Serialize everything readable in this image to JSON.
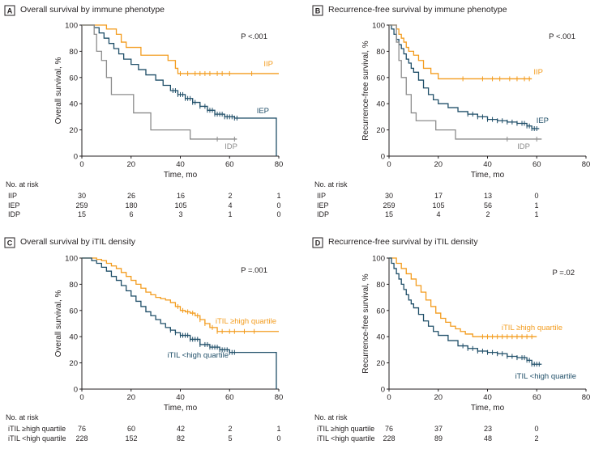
{
  "colors": {
    "orange": "#f39c1e",
    "navy": "#1f4e68",
    "gray": "#8c8c8c",
    "axis": "#231f20",
    "badge_border": "#231f20"
  },
  "chart_data": [
    {
      "panel": "A",
      "type": "line",
      "step": true,
      "title": "Overall survival by immune phenotype",
      "xlabel": "Time, mo",
      "ylabel": "Overall survival, %",
      "xlim": [
        0,
        80
      ],
      "ylim": [
        0,
        100
      ],
      "xticks": [
        0,
        20,
        40,
        60,
        80
      ],
      "yticks": [
        0,
        20,
        40,
        60,
        80,
        100
      ],
      "pvalue": "P <.001",
      "series": [
        {
          "name": "IIP",
          "color": "orange",
          "x": [
            0,
            10,
            14,
            16,
            18,
            24,
            35,
            38,
            39,
            80
          ],
          "y": [
            100,
            97,
            93,
            87,
            83,
            77,
            73,
            67,
            63,
            63
          ],
          "censor_x": [
            40,
            43,
            46,
            48,
            50,
            52,
            55,
            57,
            60,
            69
          ]
        },
        {
          "name": "IEP",
          "color": "navy",
          "x": [
            0,
            5,
            7,
            9,
            11,
            13,
            15,
            17,
            20,
            23,
            26,
            30,
            33,
            36,
            39,
            42,
            45,
            48,
            51,
            54,
            58,
            62,
            79,
            79
          ],
          "y": [
            100,
            98,
            94,
            90,
            86,
            82,
            78,
            74,
            70,
            66,
            62,
            58,
            54,
            50,
            47,
            44,
            41,
            38,
            35,
            32,
            30,
            29,
            29,
            0
          ],
          "censor_x": [
            37,
            38,
            39,
            40,
            41,
            42,
            43,
            44,
            45,
            46,
            48,
            50,
            51,
            52,
            53,
            54,
            55,
            56,
            57,
            58,
            59,
            60,
            61,
            62,
            63
          ]
        },
        {
          "name": "IDP",
          "color": "gray",
          "x": [
            0,
            5,
            6,
            8,
            10,
            12,
            21,
            28,
            44,
            63
          ],
          "y": [
            100,
            93,
            80,
            73,
            60,
            47,
            33,
            20,
            13,
            13
          ],
          "censor_x": [
            55,
            62
          ]
        }
      ],
      "risk_table": {
        "label": "No. at risk",
        "rows": [
          {
            "name": "IIP",
            "values": [
              "30",
              "26",
              "16",
              "2",
              "1"
            ]
          },
          {
            "name": "IEP",
            "values": [
              "259",
              "180",
              "105",
              "4",
              "0"
            ]
          },
          {
            "name": "IDP",
            "values": [
              "15",
              "6",
              "3",
              "1",
              "0"
            ]
          }
        ]
      }
    },
    {
      "panel": "B",
      "type": "line",
      "step": true,
      "title": "Recurrence-free survival by immune phenotype",
      "xlabel": "Time, mo",
      "ylabel": "Recurrence-free survival, %",
      "xlim": [
        0,
        80
      ],
      "ylim": [
        0,
        100
      ],
      "xticks": [
        0,
        20,
        40,
        60,
        80
      ],
      "yticks": [
        0,
        20,
        40,
        60,
        80,
        100
      ],
      "pvalue": "P <.001",
      "series": [
        {
          "name": "IIP",
          "color": "orange",
          "x": [
            0,
            3,
            4,
            5,
            6,
            7,
            8,
            10,
            12,
            14,
            17,
            20,
            58
          ],
          "y": [
            100,
            97,
            93,
            90,
            87,
            83,
            80,
            77,
            73,
            67,
            63,
            59,
            59
          ],
          "censor_x": [
            30,
            38,
            42,
            45,
            49,
            52,
            55,
            57
          ]
        },
        {
          "name": "IEP",
          "color": "navy",
          "x": [
            0,
            1,
            2,
            3,
            4,
            5,
            6,
            7,
            8,
            9,
            10,
            12,
            14,
            16,
            18,
            20,
            24,
            28,
            32,
            36,
            40,
            44,
            48,
            52,
            56,
            58,
            61
          ],
          "y": [
            100,
            97,
            93,
            89,
            85,
            82,
            78,
            74,
            71,
            67,
            64,
            58,
            52,
            47,
            43,
            40,
            37,
            34,
            32,
            30,
            28,
            27,
            26,
            25,
            23,
            21,
            21
          ],
          "censor_x": [
            32,
            34,
            36,
            38,
            40,
            42,
            44,
            46,
            48,
            50,
            52,
            54,
            55,
            56,
            57,
            58,
            59,
            60
          ]
        },
        {
          "name": "IDP",
          "color": "gray",
          "x": [
            0,
            3,
            4,
            5,
            7,
            9,
            11,
            19,
            27,
            62
          ],
          "y": [
            100,
            87,
            73,
            60,
            47,
            33,
            27,
            20,
            13,
            13
          ],
          "censor_x": [
            48,
            60
          ]
        }
      ],
      "risk_table": {
        "label": "No. at risk",
        "rows": [
          {
            "name": "IIP",
            "values": [
              "30",
              "17",
              "13",
              "0"
            ]
          },
          {
            "name": "IEP",
            "values": [
              "259",
              "105",
              "56",
              "1"
            ]
          },
          {
            "name": "IDP",
            "values": [
              "15",
              "4",
              "2",
              "1"
            ]
          }
        ]
      }
    },
    {
      "panel": "C",
      "type": "line",
      "step": true,
      "title": "Overall survival by iTIL density",
      "xlabel": "Time, mo",
      "ylabel": "Overall survival, %",
      "xlim": [
        0,
        80
      ],
      "ylim": [
        0,
        100
      ],
      "xticks": [
        0,
        20,
        40,
        60,
        80
      ],
      "yticks": [
        0,
        20,
        40,
        60,
        80,
        100
      ],
      "pvalue": "P =.001",
      "series": [
        {
          "name": "iTIL ≥high quartile",
          "color": "orange",
          "x": [
            0,
            6,
            8,
            10,
            12,
            14,
            16,
            18,
            20,
            22,
            24,
            26,
            28,
            30,
            32,
            34,
            36,
            38,
            40,
            42,
            44,
            46,
            48,
            50,
            52,
            55,
            80
          ],
          "y": [
            100,
            99,
            98,
            96,
            94,
            92,
            89,
            86,
            83,
            80,
            77,
            74,
            72,
            70,
            69,
            68,
            66,
            63,
            60,
            59,
            58,
            56,
            53,
            50,
            47,
            44,
            44
          ],
          "censor_x": [
            39,
            41,
            43,
            45,
            47,
            48,
            50,
            53,
            55,
            57,
            60,
            62,
            66,
            70
          ]
        },
        {
          "name": "iTIL <high quartile",
          "color": "navy",
          "x": [
            0,
            4,
            6,
            8,
            10,
            12,
            14,
            16,
            18,
            20,
            22,
            24,
            26,
            28,
            30,
            32,
            34,
            36,
            38,
            40,
            44,
            48,
            52,
            56,
            60,
            79,
            79
          ],
          "y": [
            100,
            98,
            96,
            93,
            90,
            86,
            83,
            79,
            75,
            71,
            67,
            63,
            59,
            56,
            53,
            50,
            47,
            45,
            43,
            41,
            38,
            34,
            32,
            30,
            28,
            28,
            0
          ],
          "censor_x": [
            36,
            38,
            40,
            41,
            42,
            43,
            44,
            45,
            46,
            47,
            48,
            50,
            51,
            52,
            53,
            54,
            55,
            56,
            57,
            58,
            59,
            60,
            61,
            62
          ]
        }
      ],
      "risk_table": {
        "label": "No. at risk",
        "rows": [
          {
            "name": "iTIL ≥high quartile",
            "values": [
              "76",
              "60",
              "42",
              "2",
              "1"
            ]
          },
          {
            "name": "iTIL <high quartile",
            "values": [
              "228",
              "152",
              "82",
              "5",
              "0"
            ]
          }
        ]
      }
    },
    {
      "panel": "D",
      "type": "line",
      "step": true,
      "title": "Recurrence-free survival by iTIL density",
      "xlabel": "Time, mo",
      "ylabel": "Recurrence-free survival, %",
      "xlim": [
        0,
        80
      ],
      "ylim": [
        0,
        100
      ],
      "xticks": [
        0,
        20,
        40,
        60,
        80
      ],
      "yticks": [
        0,
        20,
        40,
        60,
        80,
        100
      ],
      "pvalue": "P =.02",
      "series": [
        {
          "name": "iTIL ≥high quartile",
          "color": "orange",
          "x": [
            0,
            3,
            5,
            7,
            9,
            11,
            13,
            15,
            17,
            19,
            21,
            23,
            25,
            27,
            29,
            31,
            34,
            60
          ],
          "y": [
            100,
            96,
            92,
            88,
            84,
            79,
            74,
            68,
            63,
            58,
            54,
            51,
            48,
            46,
            44,
            42,
            40,
            40
          ],
          "censor_x": [
            38,
            40,
            42,
            44,
            46,
            48,
            50,
            52,
            54,
            56,
            58
          ]
        },
        {
          "name": "iTIL <high quartile",
          "color": "navy",
          "x": [
            0,
            1,
            2,
            3,
            4,
            5,
            6,
            7,
            8,
            9,
            10,
            12,
            14,
            16,
            18,
            20,
            24,
            28,
            32,
            36,
            40,
            44,
            48,
            52,
            56,
            58,
            62
          ],
          "y": [
            100,
            96,
            92,
            88,
            84,
            80,
            76,
            72,
            68,
            65,
            62,
            57,
            52,
            48,
            44,
            41,
            37,
            33,
            31,
            29,
            28,
            27,
            25,
            24,
            22,
            19,
            19
          ],
          "censor_x": [
            30,
            32,
            34,
            36,
            38,
            40,
            42,
            44,
            46,
            48,
            50,
            52,
            54,
            55,
            56,
            57,
            58,
            59,
            60,
            61
          ]
        }
      ],
      "risk_table": {
        "label": "No. at risk",
        "rows": [
          {
            "name": "iTIL ≥high quartile",
            "values": [
              "76",
              "37",
              "23",
              "0"
            ]
          },
          {
            "name": "iTIL <high quartile",
            "values": [
              "228",
              "89",
              "48",
              "2"
            ]
          }
        ]
      }
    }
  ]
}
